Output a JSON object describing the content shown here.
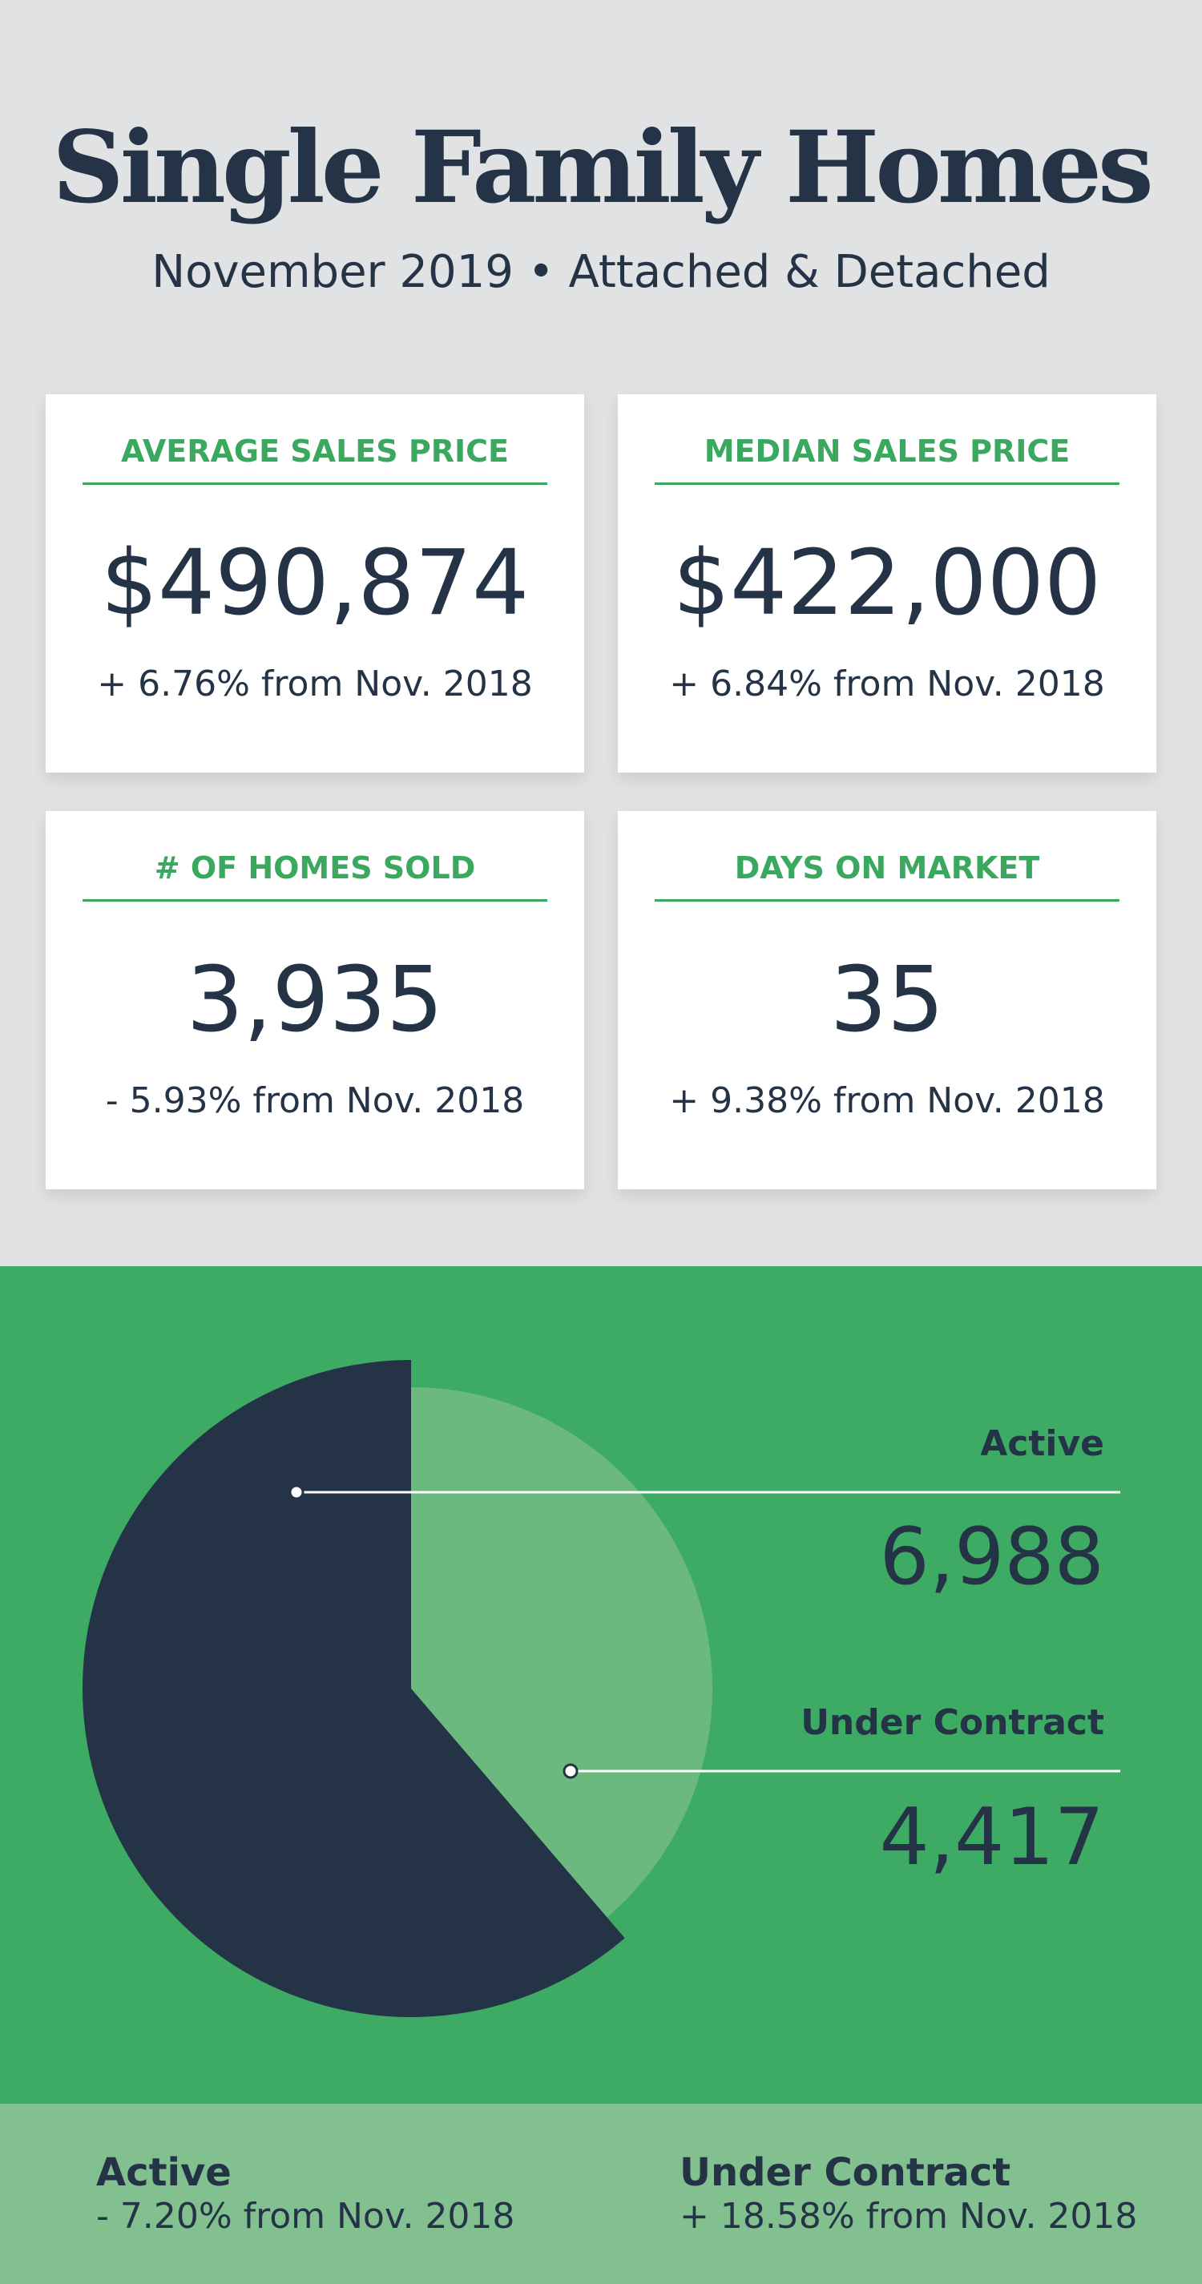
{
  "header": {
    "title": "Single Family Homes",
    "subtitle": "November 2019 • Attached & Detached"
  },
  "cards": [
    {
      "label": "AVERAGE SALES PRICE",
      "value": "$490,874",
      "change": "+ 6.76% from Nov. 2018"
    },
    {
      "label": "MEDIAN SALES PRICE",
      "value": "$422,000",
      "change": "+ 6.84% from Nov. 2018"
    },
    {
      "label": "# OF HOMES SOLD",
      "value": "3,935",
      "change": "- 5.93% from Nov. 2018"
    },
    {
      "label": "DAYS ON MARKET",
      "value": "35",
      "change": "+ 9.38% from Nov. 2018"
    }
  ],
  "colors": {
    "background": "#e1e2e4",
    "navy": "#243346",
    "green": "#3eab64",
    "light_green_slice": "#6bb97e",
    "footer_green": "#82c08f",
    "accent_text": "#3aa85f"
  },
  "chart_data": {
    "type": "pie",
    "categories": [
      "Active",
      "Under Contract"
    ],
    "values": [
      6988,
      4417
    ],
    "display_values": [
      "6,988",
      "4,417"
    ],
    "colors": [
      "#243346",
      "#6bb97e"
    ],
    "legend": "right"
  },
  "footer": {
    "active": {
      "label": "Active",
      "change": "- 7.20% from Nov. 2018"
    },
    "under_contract": {
      "label": "Under Contract",
      "change": "+ 18.58% from Nov. 2018"
    }
  }
}
